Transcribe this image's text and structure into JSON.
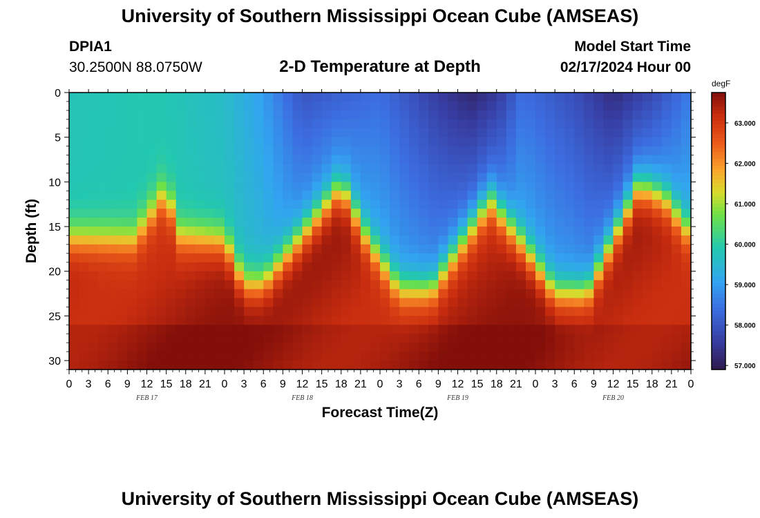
{
  "header": {
    "title": "University of Southern Mississippi Ocean Cube (AMSEAS)",
    "station_id": "DPIA1",
    "coordinates": "30.2500N  88.0750W",
    "subtitle": "2-D Temperature at Depth",
    "model_start_label": "Model Start Time",
    "model_start_value": "02/17/2024 Hour 00"
  },
  "footer": {
    "title": "University of Southern Mississippi Ocean Cube (AMSEAS)"
  },
  "chart_data": {
    "type": "heatmap",
    "title": "2-D Temperature at Depth",
    "xlabel": "Forecast Time(Z)",
    "ylabel": "Depth (ft)",
    "x_hours_range": [
      0,
      96
    ],
    "x_tick_step_hours": 3,
    "x_tick_labels": [
      "0",
      "3",
      "6",
      "9",
      "12",
      "15",
      "18",
      "21",
      "0",
      "3",
      "6",
      "9",
      "12",
      "15",
      "18",
      "21",
      "0",
      "3",
      "6",
      "9",
      "12",
      "15",
      "18",
      "21",
      "0",
      "3",
      "6",
      "9",
      "12",
      "15",
      "18",
      "21",
      "0"
    ],
    "date_labels": [
      {
        "label": "FEB 17",
        "hour": 12
      },
      {
        "label": "FEB 18",
        "hour": 36
      },
      {
        "label": "FEB 19",
        "hour": 60
      },
      {
        "label": "FEB 20",
        "hour": 84
      }
    ],
    "y_range": [
      0,
      31
    ],
    "y_ticks": [
      0,
      5,
      10,
      15,
      20,
      25,
      30
    ],
    "y_tick_labels": [
      "0",
      "5",
      "10",
      "15",
      "20",
      "25",
      "30"
    ],
    "colorbar": {
      "unit": "degF",
      "range": [
        56.9,
        63.75
      ],
      "ticks": [
        57,
        58,
        59,
        60,
        61,
        62,
        63
      ],
      "tick_labels": [
        "57.000",
        "58.000",
        "59.000",
        "60.000",
        "61.000",
        "62.000",
        "63.000"
      ]
    },
    "thermocline_depth_ft": [
      {
        "hour": 0,
        "depth": 16.5
      },
      {
        "hour": 10,
        "depth": 16.5
      },
      {
        "hour": 15,
        "depth": 11
      },
      {
        "hour": 17,
        "depth": 16
      },
      {
        "hour": 24,
        "depth": 16.5
      },
      {
        "hour": 27,
        "depth": 21.5
      },
      {
        "hour": 30,
        "depth": 21.5
      },
      {
        "hour": 42,
        "depth": 10.5
      },
      {
        "hour": 46,
        "depth": 16.5
      },
      {
        "hour": 51,
        "depth": 22
      },
      {
        "hour": 56,
        "depth": 22
      },
      {
        "hour": 65,
        "depth": 12
      },
      {
        "hour": 70,
        "depth": 17
      },
      {
        "hour": 75,
        "depth": 22.5
      },
      {
        "hour": 80,
        "depth": 22.5
      },
      {
        "hour": 88,
        "depth": 10.5
      },
      {
        "hour": 92,
        "depth": 12
      },
      {
        "hour": 96,
        "depth": 16
      }
    ],
    "surface_temperature_degF": [
      {
        "hour": 0,
        "temp": 59.8
      },
      {
        "hour": 14,
        "temp": 59.9
      },
      {
        "hour": 24,
        "temp": 59.6
      },
      {
        "hour": 30,
        "temp": 59.0
      },
      {
        "hour": 36,
        "temp": 58.0
      },
      {
        "hour": 48,
        "temp": 58.4
      },
      {
        "hour": 58,
        "temp": 57.5
      },
      {
        "hour": 62,
        "temp": 57.2
      },
      {
        "hour": 66,
        "temp": 57.5
      },
      {
        "hour": 70,
        "temp": 58.4
      },
      {
        "hour": 78,
        "temp": 57.9
      },
      {
        "hour": 84,
        "temp": 57.3
      },
      {
        "hour": 90,
        "temp": 57.8
      },
      {
        "hour": 96,
        "temp": 58.6
      }
    ],
    "deep_temperature_degF": 63.4
  }
}
